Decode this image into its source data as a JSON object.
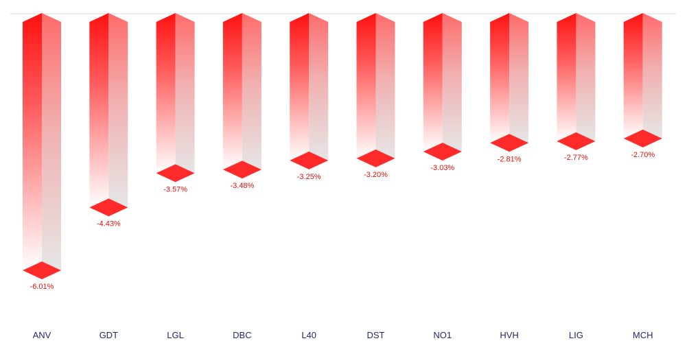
{
  "chart_data": {
    "type": "bar",
    "categories": [
      "ANV",
      "GDT",
      "LGL",
      "DBC",
      "L40",
      "DST",
      "NO1",
      "HVH",
      "LIG",
      "MCH"
    ],
    "values": [
      -6.01,
      -4.43,
      -3.57,
      -3.48,
      -3.25,
      -3.2,
      -3.03,
      -2.81,
      -2.77,
      -2.7
    ],
    "data_labels": [
      "-6.01%",
      "-4.43%",
      "-3.57%",
      "-3.48%",
      "-3.25%",
      "-3.20%",
      "-3.03%",
      "-2.81%",
      "-2.77%",
      "-2.70%"
    ],
    "title": "",
    "xlabel": "",
    "ylabel": "",
    "ylim": [
      -6.5,
      0
    ],
    "grid": false,
    "legend": "none",
    "colors": {
      "bar": "#ff1a1a",
      "bar_light": "#eeeeee",
      "label": "#e3120b",
      "axis_text": "#1f2a6e",
      "baseline": "#d9d9d9"
    }
  }
}
